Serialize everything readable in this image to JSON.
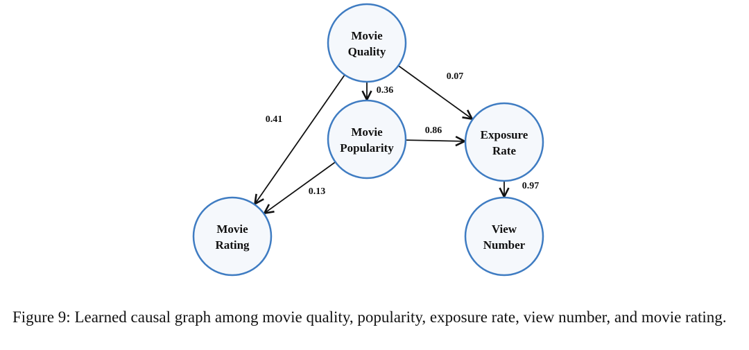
{
  "nodes": [
    {
      "id": "quality",
      "lines": [
        "Movie",
        "Quality"
      ]
    },
    {
      "id": "popularity",
      "lines": [
        "Movie",
        "Popularity"
      ]
    },
    {
      "id": "exposure",
      "lines": [
        "Exposure",
        "Rate"
      ]
    },
    {
      "id": "rating",
      "lines": [
        "Movie",
        "Rating"
      ]
    },
    {
      "id": "view",
      "lines": [
        "View",
        "Number"
      ]
    }
  ],
  "edges": [
    {
      "from": "quality",
      "to": "popularity",
      "weight": "0.36"
    },
    {
      "from": "quality",
      "to": "exposure",
      "weight": "0.07"
    },
    {
      "from": "quality",
      "to": "rating",
      "weight": "0.41"
    },
    {
      "from": "popularity",
      "to": "exposure",
      "weight": "0.86"
    },
    {
      "from": "popularity",
      "to": "rating",
      "weight": "0.13"
    },
    {
      "from": "exposure",
      "to": "view",
      "weight": "0.97"
    }
  ],
  "colors": {
    "node_stroke": "#3f7cc2",
    "node_fill": "#f5f8fc"
  },
  "caption": "Figure 9: Learned causal graph among movie quality, popularity, exposure rate, view number, and movie rating."
}
